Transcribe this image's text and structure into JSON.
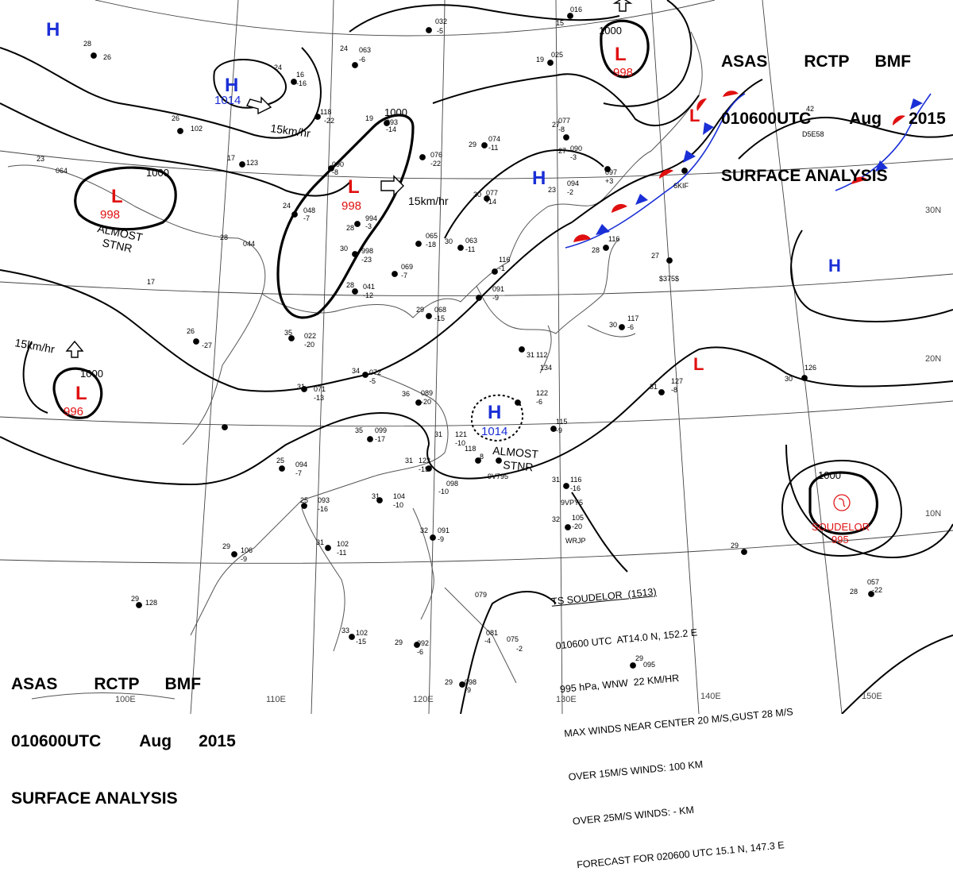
{
  "header": {
    "product": [
      "ASAS",
      "RCTP",
      "BMF"
    ],
    "time": [
      "010600UTC",
      "Aug",
      "2015"
    ],
    "title": "SURFACE ANALYSIS"
  },
  "labels": {
    "isobar_1000": "1000",
    "pressure_998": "998",
    "pressure_996": "996",
    "pressure_995": "995",
    "pressure_1014": "1014",
    "speed": "15km/hr",
    "almost": "ALMOST",
    "stnr": "STNR",
    "high": "H",
    "low": "L",
    "soudelor": "SOUDELOR",
    "lat_30": "30N",
    "lat_20": "20N",
    "lat_10": "10N",
    "lon_100": "100E",
    "lon_110": "110E",
    "lon_120": "120E",
    "lon_130": "130E",
    "lon_140": "140E",
    "lon_150": "150E"
  },
  "storm": {
    "lines": [
      "TS SOUDELOR  (1513)",
      "010600 UTC  AT14.0 N, 152.2 E",
      "995 hPa, WNW  22 KM/HR",
      "MAX WINDS NEAR CENTER 20 M/S,GUST 28 M/S",
      "OVER 15M/S WINDS: 100 KM",
      "OVER 25M/S WINDS: - KM",
      "FORECAST FOR 020600 UTC 15.1 N, 147.3 E"
    ]
  },
  "colors": {
    "high": "#1a2fd6",
    "low": "#e01010",
    "isobar": "#000000",
    "coast": "#555555"
  }
}
